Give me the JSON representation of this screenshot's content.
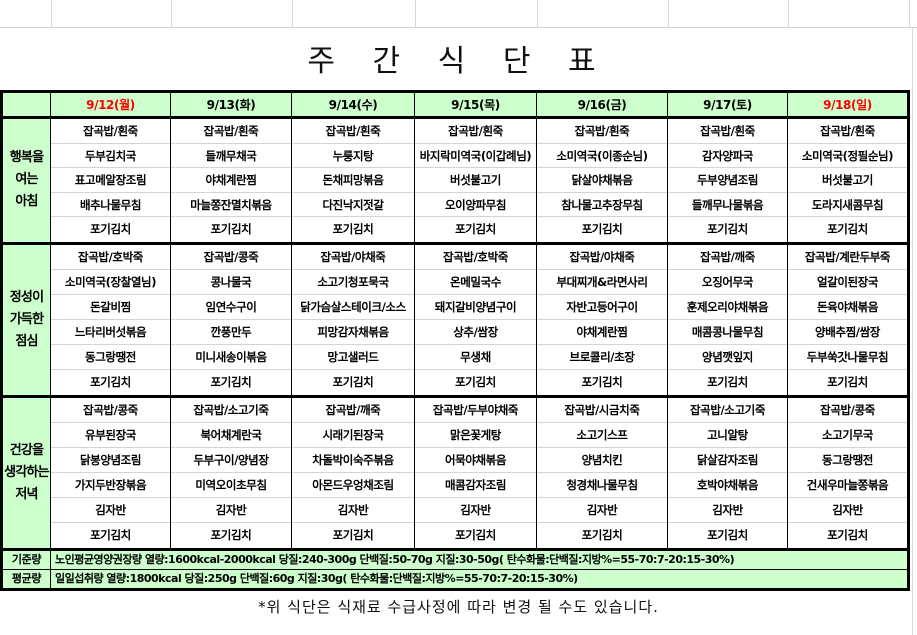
{
  "title": "주 간 식 단 표",
  "colors": {
    "header_bg": "#ccffcc",
    "weekend_date": "#ff0000"
  },
  "days": [
    {
      "date": "9/12(월)",
      "red": true
    },
    {
      "date": "9/13(화)",
      "red": false
    },
    {
      "date": "9/14(수)",
      "red": false
    },
    {
      "date": "9/15(목)",
      "red": false
    },
    {
      "date": "9/16(금)",
      "red": false
    },
    {
      "date": "9/17(토)",
      "red": false
    },
    {
      "date": "9/18(일)",
      "red": true
    }
  ],
  "meals": [
    {
      "key": "breakfast",
      "label": "행복을\n여는\n아침",
      "menus": [
        [
          "잡곡밥/흰죽",
          "두부김치국",
          "표고메알장조림",
          "배추나물무침",
          "포기김치"
        ],
        [
          "잡곡밥/흰죽",
          "들깨무채국",
          "야채계란찜",
          "마늘쫑잔멸치볶음",
          "포기김치"
        ],
        [
          "잡곡밥/흰죽",
          "누룽지탕",
          "돈채피망볶음",
          "다진낙지젓갈",
          "포기김치"
        ],
        [
          "잡곡밥/흰죽",
          "바지락미역국(이갑례님)",
          "버섯불고기",
          "오이양파무침",
          "포기김치"
        ],
        [
          "잡곡밥/흰죽",
          "소미역국(이종순님)",
          "닭살야채볶음",
          "참나물고추장무침",
          "포기김치"
        ],
        [
          "잡곡밥/흰죽",
          "감자양파국",
          "두부양념조림",
          "들깨무나물볶음",
          "포기김치"
        ],
        [
          "잡곡밥/흰죽",
          "소미역국(정필순님)",
          "버섯불고기",
          "도라지새콤무침",
          "포기김치"
        ]
      ]
    },
    {
      "key": "lunch",
      "label": "정성이\n가득한\n점심",
      "menus": [
        [
          "잡곡밥/호박죽",
          "소미역국(장찰열님)",
          "돈갈비찜",
          "느타리버섯볶음",
          "동그랑땡전",
          "포기김치"
        ],
        [
          "잡곡밥/콩죽",
          "콩나물국",
          "임연수구이",
          "깐풍만두",
          "미니새송이볶음",
          "포기김치"
        ],
        [
          "잡곡밥/야채죽",
          "소고기청포묵국",
          "닭가슴살스테이크/소스",
          "피망감자채볶음",
          "망고샐러드",
          "포기김치"
        ],
        [
          "잡곡밥/호박죽",
          "온메밀국수",
          "돼지갈비양념구이",
          "상추/쌈장",
          "무생채",
          "포기김치"
        ],
        [
          "잡곡밥/야채죽",
          "부대찌개&라면사리",
          "자반고등어구이",
          "야채계란찜",
          "브로콜리/초장",
          "포기김치"
        ],
        [
          "잡곡밥/깨죽",
          "오징어무국",
          "훈제오리야채볶음",
          "매콤콩나물무침",
          "양념깻잎지",
          "포기김치"
        ],
        [
          "잡곡밥/계란두부죽",
          "얼갈이된장국",
          "돈육야채볶음",
          "양배추찜/쌈장",
          "두부쑥갓나물무침",
          "포기김치"
        ]
      ]
    },
    {
      "key": "dinner",
      "label": "건강을\n생각하는\n저녁",
      "menus": [
        [
          "잡곡밥/콩죽",
          "유부된장국",
          "닭봉양념조림",
          "가지두반장볶음",
          "김자반",
          "포기김치"
        ],
        [
          "잡곡밥/소고기죽",
          "북어채계란국",
          "두부구이/양념장",
          "미역오이초무침",
          "김자반",
          "포기김치"
        ],
        [
          "잡곡밥/깨죽",
          "시래기된장국",
          "차돌박이숙주볶음",
          "아몬드우엉채조림",
          "김자반",
          "포기김치"
        ],
        [
          "잡곡밥/두부야채죽",
          "맑은꽃게탕",
          "어묵야채볶음",
          "매콤감자조림",
          "김자반",
          "포기김치"
        ],
        [
          "잡곡밥/시금치죽",
          "소고기스프",
          "양념치킨",
          "청경채나물무침",
          "김자반",
          "포기김치"
        ],
        [
          "잡곡밥/소고기죽",
          "고니알탕",
          "닭살감자조림",
          "호박야채볶음",
          "김자반",
          "포기김치"
        ],
        [
          "잡곡밥/콩죽",
          "소고기무국",
          "동그랑땡전",
          "건새우마늘쫑볶음",
          "김자반",
          "포기김치"
        ]
      ]
    }
  ],
  "footer": [
    {
      "label": "기준량",
      "text": "노인평균영양권장량 열량:1600kcal-2000kcal 당질:240-300g 단백질:50-70g 지질:30-50g( 탄수화물:단백질:지방%=55-70:7-20:15-30%)"
    },
    {
      "label": "평균량",
      "text": "일일섭취량 열량:1800kcal 당질:250g 단백질:60g 지질:30g( 탄수화물:단백질:지방%=55-70:7-20:15-30%)"
    }
  ],
  "note": "*위 식단은 식재료 수급사정에 따라 변경 될 수도 있습니다."
}
